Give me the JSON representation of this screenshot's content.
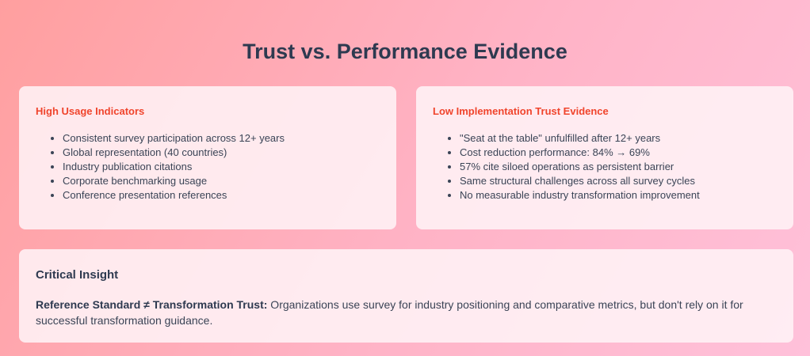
{
  "page": {
    "title": "Trust vs. Performance Evidence"
  },
  "high_usage": {
    "heading": "High Usage Indicators",
    "items": [
      "Consistent survey participation across 12+ years",
      "Global representation (40 countries)",
      "Industry publication citations",
      "Corporate benchmarking usage",
      "Conference presentation references"
    ]
  },
  "low_trust": {
    "heading": "Low Implementation Trust Evidence",
    "items": [
      "\"Seat at the table\" unfulfilled after 12+ years",
      "Cost reduction performance: 84% → 69%",
      "57% cite siloed operations as persistent barrier",
      "Same structural challenges across all survey cycles",
      "No measurable industry transformation improvement"
    ]
  },
  "insight": {
    "title": "Critical Insight",
    "lead": "Reference Standard ≠ Transformation Trust:",
    "body": " Organizations use survey for industry positioning and comparative metrics, but don't rely on it for successful transformation guidance."
  },
  "colors": {
    "heading_accent": "#f0442c",
    "title": "#2e3a50"
  }
}
